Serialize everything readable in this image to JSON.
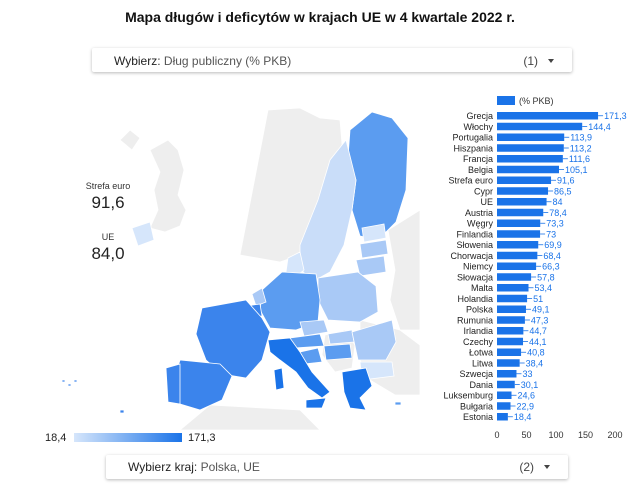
{
  "title": "Mapa długów i deficytów w krajach UE w 4 kwartale 2022 r.",
  "selector_top": {
    "prefix": "Wybierz",
    "value": "Dług publiczny (% PKB)",
    "count": "(1)"
  },
  "selector_bottom": {
    "prefix": "Wybierz kraj",
    "value": "Polska, UE",
    "count": "(2)"
  },
  "kpis": [
    {
      "label": "Strefa euro",
      "value": "91,6"
    },
    {
      "label": "UE",
      "value": "84,0"
    }
  ],
  "map_legend": {
    "min": "18,4",
    "max": "171,3",
    "min_color": "#d6e6fb",
    "max_color": "#1a73e8"
  },
  "colors": {
    "bar": "#1a73e8",
    "highlight": "#1a73e8",
    "mid": "#5b9cf0",
    "light": "#a9c9f6",
    "pale": "#c9ddf9",
    "nonEU": "#eeeeee"
  },
  "chart_data": {
    "type": "bar",
    "orientation": "horizontal",
    "legend": "(% PKB)",
    "categories": [
      "Grecja",
      "Włochy",
      "Portugalia",
      "Hiszpania",
      "Francja",
      "Belgia",
      "Strefa euro",
      "Cypr",
      "UE",
      "Austria",
      "Węgry",
      "Finlandia",
      "Słowenia",
      "Chorwacja",
      "Niemcy",
      "Słowacja",
      "Malta",
      "Holandia",
      "Polska",
      "Rumunia",
      "Irlandia",
      "Czechy",
      "Łotwa",
      "Litwa",
      "Szwecja",
      "Dania",
      "Luksemburg",
      "Bułgaria",
      "Estonia"
    ],
    "values": [
      171.3,
      144.4,
      113.9,
      113.2,
      111.6,
      105.1,
      91.6,
      86.5,
      84.0,
      78.4,
      73.3,
      73.0,
      69.9,
      68.4,
      66.3,
      57.8,
      53.4,
      51.0,
      49.1,
      47.3,
      44.7,
      44.1,
      40.8,
      38.4,
      33.0,
      30.1,
      24.6,
      22.9,
      18.4
    ],
    "value_labels": [
      "171,3",
      "144,4",
      "113,9",
      "113,2",
      "111,6",
      "105,1",
      "91,6",
      "86,5",
      "84",
      "78,4",
      "73,3",
      "73",
      "69,9",
      "68,4",
      "66,3",
      "57,8",
      "53,4",
      "51",
      "49,1",
      "47,3",
      "44,7",
      "44,1",
      "40,8",
      "38,4",
      "33",
      "30,1",
      "24,6",
      "22,9",
      "18,4"
    ],
    "xlim": [
      0,
      200
    ],
    "xticks": [
      "0",
      "50",
      "100",
      "150",
      "200"
    ]
  }
}
